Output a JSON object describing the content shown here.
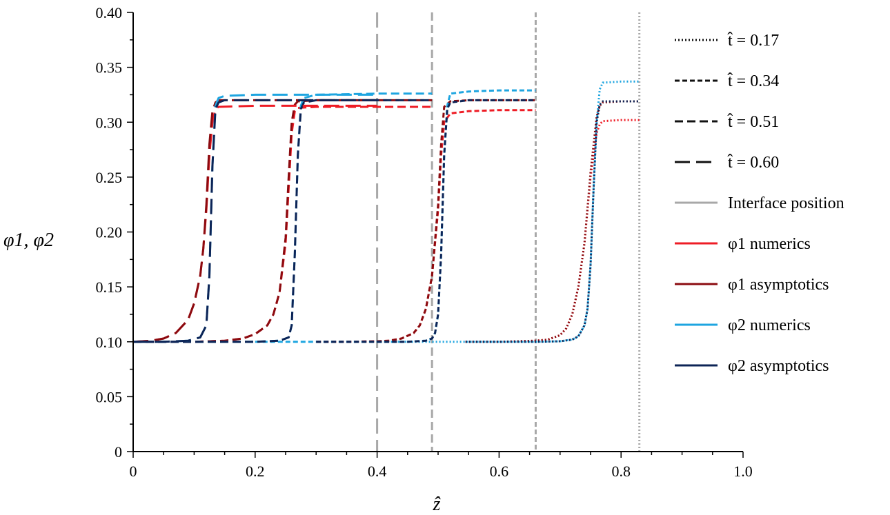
{
  "chart_data": {
    "type": "line",
    "xlabel": "ẑ",
    "ylabel": "φ1, φ2",
    "xlim": [
      0,
      1.0
    ],
    "ylim": [
      0,
      0.4
    ],
    "x_ticks": [
      "0",
      "0.2",
      "0.4",
      "0.6",
      "0.8",
      "1.0"
    ],
    "y_ticks": [
      "0",
      "0.05",
      "0.10",
      "0.15",
      "0.20",
      "0.25",
      "0.30",
      "0.35",
      "0.40"
    ],
    "grid": false,
    "legend_position": "right",
    "colors": {
      "phi1_numerics": "#ee1c25",
      "phi1_asymptotics": "#8b0b10",
      "phi2_numerics": "#1ea5e0",
      "phi2_asymptotics": "#0d2456",
      "interface": "#a8a8a8"
    },
    "legend": [
      {
        "label": "t̂ = 0.17",
        "style": "dotted"
      },
      {
        "label": "t̂ = 0.34",
        "style": "dashed-short"
      },
      {
        "label": "t̂ = 0.51",
        "style": "dashed-medium"
      },
      {
        "label": "t̂ = 0.60",
        "style": "dashed-long"
      },
      {
        "label": "Interface position",
        "style": "solid-gray"
      },
      {
        "label": "φ1 numerics",
        "style": "solid-phi1-numerics"
      },
      {
        "label": "φ1 asymptotics",
        "style": "solid-phi1-asymptotics"
      },
      {
        "label": "φ2 numerics",
        "style": "solid-phi2-numerics"
      },
      {
        "label": "φ2 asymptotics",
        "style": "solid-phi2-asymptotics"
      }
    ],
    "interface_positions": [
      {
        "t": 0.17,
        "z": 0.83
      },
      {
        "t": 0.34,
        "z": 0.66
      },
      {
        "t": 0.51,
        "z": 0.49
      },
      {
        "t": 0.6,
        "z": 0.4
      }
    ],
    "groups": [
      {
        "t": 0.17,
        "style": "dotted",
        "series": [
          {
            "kind": "phi1 numerics",
            "x": [
              0.545,
              0.57,
              0.6,
              0.63,
              0.66,
              0.68,
              0.7,
              0.71,
              0.72,
              0.73,
              0.74,
              0.75,
              0.76,
              0.765,
              0.77,
              0.8,
              0.83
            ],
            "y": [
              0.1,
              0.1,
              0.1,
              0.1005,
              0.101,
              0.102,
              0.106,
              0.112,
              0.125,
              0.15,
              0.19,
              0.25,
              0.29,
              0.298,
              0.301,
              0.302,
              0.302
            ]
          },
          {
            "kind": "phi1 asymptotics",
            "x": [
              0.545,
              0.57,
              0.6,
              0.63,
              0.66,
              0.68,
              0.7,
              0.71,
              0.72,
              0.73,
              0.74,
              0.75,
              0.76,
              0.765,
              0.77,
              0.8,
              0.83
            ],
            "y": [
              0.1,
              0.1,
              0.1,
              0.1005,
              0.101,
              0.102,
              0.106,
              0.112,
              0.125,
              0.15,
              0.19,
              0.255,
              0.305,
              0.315,
              0.318,
              0.319,
              0.319
            ]
          },
          {
            "kind": "phi2 numerics",
            "x": [
              0.4,
              0.45,
              0.5,
              0.55,
              0.6,
              0.66,
              0.7,
              0.72,
              0.73,
              0.74,
              0.745,
              0.75,
              0.755,
              0.76,
              0.765,
              0.77,
              0.8,
              0.83
            ],
            "y": [
              0.1,
              0.1,
              0.1,
              0.1,
              0.1,
              0.1,
              0.1005,
              0.102,
              0.105,
              0.115,
              0.13,
              0.17,
              0.24,
              0.3,
              0.33,
              0.336,
              0.337,
              0.337
            ]
          },
          {
            "kind": "phi2 asymptotics",
            "x": [
              0.545,
              0.6,
              0.66,
              0.7,
              0.72,
              0.73,
              0.74,
              0.745,
              0.75,
              0.755,
              0.76,
              0.765,
              0.77,
              0.8,
              0.83
            ],
            "y": [
              0.1,
              0.1,
              0.1,
              0.1005,
              0.102,
              0.105,
              0.115,
              0.13,
              0.17,
              0.24,
              0.3,
              0.316,
              0.319,
              0.319,
              0.319
            ]
          }
        ]
      },
      {
        "t": 0.34,
        "style": "dashed-short",
        "series": [
          {
            "kind": "phi1 numerics",
            "x": [
              0.3,
              0.35,
              0.4,
              0.42,
              0.44,
              0.46,
              0.47,
              0.48,
              0.49,
              0.5,
              0.505,
              0.51,
              0.52,
              0.55,
              0.6,
              0.66
            ],
            "y": [
              0.1,
              0.1,
              0.1005,
              0.101,
              0.103,
              0.108,
              0.115,
              0.13,
              0.16,
              0.22,
              0.27,
              0.3,
              0.308,
              0.31,
              0.311,
              0.311
            ]
          },
          {
            "kind": "phi1 asymptotics",
            "x": [
              0.3,
              0.35,
              0.4,
              0.42,
              0.44,
              0.46,
              0.47,
              0.48,
              0.49,
              0.5,
              0.505,
              0.51,
              0.52,
              0.55,
              0.6,
              0.66
            ],
            "y": [
              0.1,
              0.1,
              0.1005,
              0.101,
              0.103,
              0.108,
              0.115,
              0.13,
              0.16,
              0.225,
              0.28,
              0.314,
              0.319,
              0.32,
              0.32,
              0.32
            ]
          },
          {
            "kind": "phi2 numerics",
            "x": [
              0.2,
              0.3,
              0.4,
              0.45,
              0.48,
              0.49,
              0.495,
              0.5,
              0.505,
              0.51,
              0.515,
              0.52,
              0.55,
              0.6,
              0.66
            ],
            "y": [
              0.1,
              0.1,
              0.1,
              0.1,
              0.101,
              0.103,
              0.108,
              0.125,
              0.18,
              0.27,
              0.315,
              0.326,
              0.328,
              0.329,
              0.329
            ]
          },
          {
            "kind": "phi2 asymptotics",
            "x": [
              0.3,
              0.4,
              0.45,
              0.48,
              0.49,
              0.495,
              0.5,
              0.505,
              0.51,
              0.515,
              0.52,
              0.55,
              0.6,
              0.66
            ],
            "y": [
              0.1,
              0.1,
              0.1,
              0.101,
              0.103,
              0.108,
              0.125,
              0.18,
              0.27,
              0.312,
              0.318,
              0.32,
              0.32,
              0.32
            ]
          }
        ]
      },
      {
        "t": 0.51,
        "style": "dashed-medium",
        "series": [
          {
            "kind": "phi1 numerics",
            "x": [
              0.0,
              0.1,
              0.15,
              0.18,
              0.2,
              0.22,
              0.23,
              0.24,
              0.25,
              0.255,
              0.26,
              0.265,
              0.27,
              0.3,
              0.4,
              0.49
            ],
            "y": [
              0.1,
              0.1,
              0.101,
              0.103,
              0.107,
              0.115,
              0.125,
              0.145,
              0.19,
              0.24,
              0.29,
              0.31,
              0.313,
              0.314,
              0.314,
              0.314
            ]
          },
          {
            "kind": "phi1 asymptotics",
            "x": [
              0.0,
              0.1,
              0.15,
              0.18,
              0.2,
              0.22,
              0.23,
              0.24,
              0.25,
              0.255,
              0.26,
              0.265,
              0.27,
              0.3,
              0.4,
              0.49
            ],
            "y": [
              0.1,
              0.1,
              0.101,
              0.103,
              0.107,
              0.115,
              0.125,
              0.145,
              0.195,
              0.25,
              0.3,
              0.316,
              0.319,
              0.32,
              0.32,
              0.32
            ]
          },
          {
            "kind": "phi2 numerics",
            "x": [
              0.0,
              0.1,
              0.2,
              0.24,
              0.255,
              0.26,
              0.265,
              0.27,
              0.275,
              0.28,
              0.3,
              0.4,
              0.49
            ],
            "y": [
              0.1,
              0.1,
              0.1,
              0.101,
              0.104,
              0.115,
              0.18,
              0.27,
              0.315,
              0.322,
              0.325,
              0.326,
              0.326
            ]
          },
          {
            "kind": "phi2 asymptotics",
            "x": [
              0.0,
              0.1,
              0.2,
              0.24,
              0.255,
              0.26,
              0.265,
              0.27,
              0.275,
              0.28,
              0.3,
              0.4,
              0.49
            ],
            "y": [
              0.1,
              0.1,
              0.1,
              0.101,
              0.104,
              0.115,
              0.18,
              0.27,
              0.312,
              0.318,
              0.32,
              0.32,
              0.32
            ]
          }
        ]
      },
      {
        "t": 0.6,
        "style": "dashed-long",
        "series": [
          {
            "kind": "phi1 numerics",
            "x": [
              0.0,
              0.03,
              0.05,
              0.07,
              0.09,
              0.1,
              0.11,
              0.115,
              0.12,
              0.125,
              0.13,
              0.135,
              0.14,
              0.2,
              0.3,
              0.4
            ],
            "y": [
              0.1,
              0.101,
              0.103,
              0.108,
              0.12,
              0.135,
              0.16,
              0.185,
              0.22,
              0.27,
              0.3,
              0.312,
              0.314,
              0.315,
              0.315,
              0.315
            ]
          },
          {
            "kind": "phi1 asymptotics",
            "x": [
              0.0,
              0.03,
              0.05,
              0.07,
              0.09,
              0.1,
              0.11,
              0.115,
              0.12,
              0.125,
              0.13,
              0.135,
              0.14,
              0.2,
              0.3,
              0.4
            ],
            "y": [
              0.1,
              0.101,
              0.103,
              0.108,
              0.12,
              0.135,
              0.16,
              0.185,
              0.225,
              0.28,
              0.31,
              0.318,
              0.32,
              0.32,
              0.32,
              0.32
            ]
          },
          {
            "kind": "phi2 numerics",
            "x": [
              0.0,
              0.05,
              0.09,
              0.11,
              0.12,
              0.125,
              0.13,
              0.135,
              0.14,
              0.15,
              0.2,
              0.3,
              0.4
            ],
            "y": [
              0.1,
              0.1,
              0.101,
              0.104,
              0.115,
              0.16,
              0.26,
              0.315,
              0.322,
              0.324,
              0.325,
              0.325,
              0.325
            ]
          },
          {
            "kind": "phi2 asymptotics",
            "x": [
              0.0,
              0.05,
              0.09,
              0.11,
              0.12,
              0.125,
              0.13,
              0.135,
              0.14,
              0.15,
              0.2,
              0.3,
              0.4
            ],
            "y": [
              0.1,
              0.1,
              0.101,
              0.104,
              0.115,
              0.16,
              0.26,
              0.312,
              0.318,
              0.32,
              0.32,
              0.32,
              0.32
            ]
          }
        ]
      }
    ]
  }
}
